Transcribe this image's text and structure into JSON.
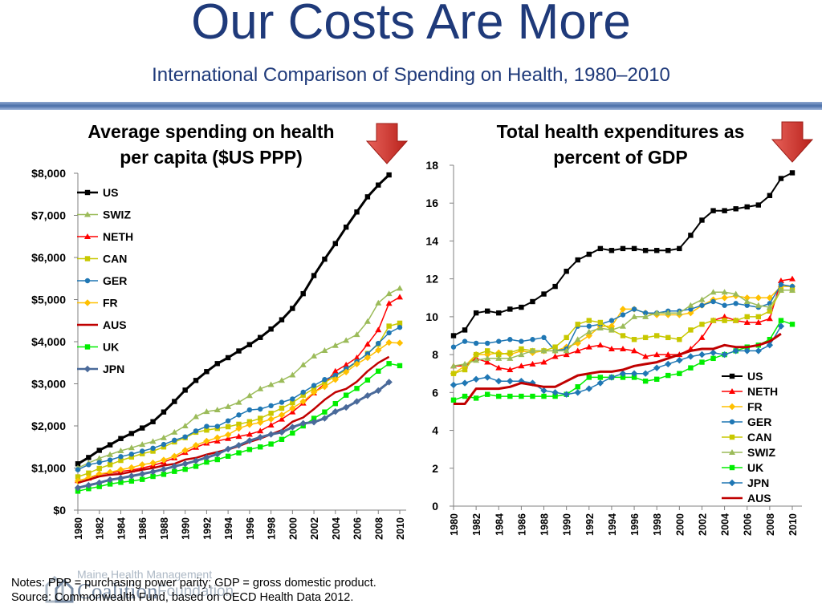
{
  "slide": {
    "title": "Our Costs Are More",
    "subtitle": "International Comparison of Spending on Health, 1980–2010",
    "notes_line1": "Notes: PPP = purchasing power parity; GDP = gross domestic product.",
    "notes_line2": "Source: Commonwealth Fund, based on OECD Health Data 2012.",
    "logo_line1": "Maine Health Management",
    "logo_line2": "Coalition",
    "logo_line3": "Foundation"
  },
  "chart_data": [
    {
      "type": "line",
      "title": "Average spending on health per capita ($US PPP)",
      "title_lines": [
        "Average spending on health",
        "per capita ($US PPP)"
      ],
      "xlabel": "",
      "ylabel": "",
      "x": [
        1980,
        1981,
        1982,
        1983,
        1984,
        1985,
        1986,
        1987,
        1988,
        1989,
        1990,
        1991,
        1992,
        1993,
        1994,
        1995,
        1996,
        1997,
        1998,
        1999,
        2000,
        2001,
        2002,
        2003,
        2004,
        2005,
        2006,
        2007,
        2008,
        2009,
        2010
      ],
      "xticks": [
        "1980",
        "1982",
        "1984",
        "1986",
        "1988",
        "1990",
        "1992",
        "1994",
        "1996",
        "1998",
        "2000",
        "2002",
        "2004",
        "2006",
        "2008",
        "2010"
      ],
      "ylim": [
        0,
        8000
      ],
      "yticks": [
        0,
        1000,
        2000,
        3000,
        4000,
        5000,
        6000,
        7000,
        8000
      ],
      "ytick_labels": [
        "$0",
        "$1,000",
        "$2,000",
        "$3,000",
        "$4,000",
        "$5,000",
        "$6,000",
        "$7,000",
        "$8,000"
      ],
      "legend_position": "upper-left",
      "series": [
        {
          "name": "US",
          "color": "#000000",
          "marker": "square",
          "width": 3,
          "values": [
            1100,
            1250,
            1420,
            1550,
            1700,
            1820,
            1950,
            2100,
            2330,
            2580,
            2850,
            3080,
            3290,
            3480,
            3620,
            3780,
            3930,
            4100,
            4300,
            4520,
            4790,
            5140,
            5570,
            5960,
            6330,
            6720,
            7080,
            7440,
            7720,
            7960,
            null
          ]
        },
        {
          "name": "SWIZ",
          "color": "#9bbb59",
          "marker": "triangle",
          "width": 1.5,
          "values": [
            1000,
            1120,
            1230,
            1320,
            1410,
            1480,
            1560,
            1630,
            1720,
            1850,
            2000,
            2220,
            2340,
            2380,
            2460,
            2560,
            2720,
            2880,
            2980,
            3080,
            3210,
            3450,
            3660,
            3790,
            3910,
            4030,
            4170,
            4480,
            4920,
            5140,
            5270
          ]
        },
        {
          "name": "NETH",
          "color": "#ff0000",
          "marker": "triangle",
          "width": 1.5,
          "values": [
            700,
            760,
            850,
            880,
            920,
            950,
            1000,
            1060,
            1140,
            1240,
            1370,
            1490,
            1590,
            1640,
            1700,
            1750,
            1800,
            1880,
            2020,
            2160,
            2330,
            2540,
            2780,
            3000,
            3300,
            3450,
            3620,
            3940,
            4280,
            4910,
            5060
          ]
        },
        {
          "name": "CAN",
          "color": "#c8c800",
          "marker": "square",
          "width": 1.5,
          "values": [
            790,
            880,
            990,
            1080,
            1180,
            1260,
            1340,
            1400,
            1500,
            1620,
            1720,
            1850,
            1900,
            1940,
            1980,
            2040,
            2100,
            2180,
            2300,
            2420,
            2550,
            2730,
            2890,
            3030,
            3180,
            3330,
            3520,
            3720,
            3940,
            4370,
            4440
          ]
        },
        {
          "name": "GER",
          "color": "#1f77b4",
          "marker": "circle",
          "width": 1.5,
          "values": [
            960,
            1080,
            1130,
            1190,
            1270,
            1330,
            1400,
            1470,
            1560,
            1660,
            1740,
            1880,
            1990,
            1990,
            2120,
            2260,
            2380,
            2400,
            2480,
            2560,
            2640,
            2800,
            2960,
            3100,
            3200,
            3360,
            3530,
            3710,
            3960,
            4210,
            4340
          ]
        },
        {
          "name": "FR",
          "color": "#ffc000",
          "marker": "diamond",
          "width": 1.5,
          "values": [
            690,
            770,
            860,
            900,
            960,
            1010,
            1080,
            1120,
            1190,
            1280,
            1420,
            1540,
            1640,
            1720,
            1790,
            1940,
            2030,
            2080,
            2160,
            2260,
            2420,
            2580,
            2800,
            2930,
            3100,
            3280,
            3470,
            3620,
            3800,
            3980,
            3970
          ]
        },
        {
          "name": "AUS",
          "color": "#c00000",
          "marker": "none",
          "width": 2.5,
          "values": [
            650,
            720,
            800,
            840,
            860,
            910,
            960,
            1000,
            1060,
            1100,
            1200,
            1240,
            1320,
            1380,
            1440,
            1520,
            1620,
            1700,
            1800,
            1900,
            2100,
            2200,
            2400,
            2620,
            2800,
            2880,
            3050,
            3300,
            3500,
            3640,
            null
          ]
        },
        {
          "name": "UK",
          "color": "#00ee00",
          "marker": "square",
          "width": 1.5,
          "values": [
            450,
            510,
            560,
            620,
            660,
            690,
            730,
            800,
            850,
            920,
            970,
            1040,
            1140,
            1200,
            1280,
            1360,
            1440,
            1500,
            1570,
            1680,
            1830,
            2000,
            2180,
            2330,
            2530,
            2730,
            2890,
            3090,
            3300,
            3480,
            3430
          ]
        },
        {
          "name": "JPN",
          "color": "#4a6a9a",
          "marker": "diamond",
          "width": 3,
          "values": [
            530,
            590,
            650,
            720,
            760,
            810,
            860,
            910,
            970,
            1040,
            1100,
            1170,
            1250,
            1330,
            1450,
            1540,
            1650,
            1730,
            1800,
            1850,
            1970,
            2060,
            2090,
            2180,
            2340,
            2440,
            2580,
            2720,
            2840,
            3040,
            null
          ]
        }
      ]
    },
    {
      "type": "line",
      "title": "Total health expenditures as percent of GDP",
      "title_lines": [
        "Total health expenditures as",
        "percent of GDP"
      ],
      "xlabel": "",
      "ylabel": "",
      "x": [
        1980,
        1981,
        1982,
        1983,
        1984,
        1985,
        1986,
        1987,
        1988,
        1989,
        1990,
        1991,
        1992,
        1993,
        1994,
        1995,
        1996,
        1997,
        1998,
        1999,
        2000,
        2001,
        2002,
        2003,
        2004,
        2005,
        2006,
        2007,
        2008,
        2009,
        2010
      ],
      "xticks": [
        "1980",
        "1982",
        "1984",
        "1986",
        "1988",
        "1990",
        "1992",
        "1994",
        "1996",
        "1998",
        "2000",
        "2002",
        "2004",
        "2006",
        "2008",
        "2010"
      ],
      "ylim": [
        0,
        18
      ],
      "yticks": [
        0,
        2,
        4,
        6,
        8,
        10,
        12,
        14,
        16,
        18
      ],
      "ytick_labels": [
        "0",
        "2",
        "4",
        "6",
        "8",
        "10",
        "12",
        "14",
        "16",
        "18"
      ],
      "legend_position": "lower-right",
      "series": [
        {
          "name": "US",
          "color": "#000000",
          "marker": "square",
          "width": 2,
          "values": [
            9.0,
            9.3,
            10.2,
            10.3,
            10.2,
            10.4,
            10.5,
            10.8,
            11.2,
            11.6,
            12.4,
            13.0,
            13.3,
            13.6,
            13.5,
            13.6,
            13.6,
            13.5,
            13.5,
            13.5,
            13.6,
            14.3,
            15.1,
            15.6,
            15.6,
            15.7,
            15.8,
            15.9,
            16.4,
            17.3,
            17.6
          ]
        },
        {
          "name": "NETH",
          "color": "#ff0000",
          "marker": "triangle",
          "width": 1.5,
          "values": [
            7.4,
            7.4,
            7.8,
            7.6,
            7.3,
            7.2,
            7.4,
            7.5,
            7.6,
            7.9,
            8.0,
            8.2,
            8.4,
            8.5,
            8.3,
            8.3,
            8.2,
            7.9,
            8.0,
            8.0,
            8.0,
            8.3,
            8.9,
            9.8,
            10.0,
            9.8,
            9.7,
            9.7,
            9.9,
            11.9,
            12.0
          ]
        },
        {
          "name": "FR",
          "color": "#ffc000",
          "marker": "diamond",
          "width": 1.5,
          "values": [
            7.0,
            7.4,
            8.0,
            8.0,
            8.1,
            8.0,
            8.2,
            8.1,
            8.2,
            8.2,
            8.4,
            8.6,
            9.0,
            9.5,
            9.5,
            10.4,
            10.4,
            10.2,
            10.1,
            10.1,
            10.1,
            10.2,
            10.6,
            10.9,
            11.0,
            11.1,
            11.0,
            11.0,
            11.0,
            11.6,
            11.6
          ]
        },
        {
          "name": "GER",
          "color": "#1f77b4",
          "marker": "circle",
          "width": 1.5,
          "values": [
            8.4,
            8.7,
            8.6,
            8.6,
            8.7,
            8.8,
            8.7,
            8.8,
            8.9,
            8.2,
            8.3,
            9.5,
            9.5,
            9.6,
            9.8,
            10.1,
            10.4,
            10.2,
            10.2,
            10.3,
            10.3,
            10.4,
            10.6,
            10.8,
            10.6,
            10.7,
            10.6,
            10.5,
            10.7,
            11.7,
            11.6
          ]
        },
        {
          "name": "CAN",
          "color": "#c8c800",
          "marker": "square",
          "width": 1.5,
          "values": [
            7.0,
            7.2,
            8.0,
            8.2,
            8.0,
            8.1,
            8.3,
            8.2,
            8.2,
            8.4,
            8.9,
            9.6,
            9.8,
            9.7,
            9.3,
            9.0,
            8.8,
            8.9,
            9.0,
            8.9,
            8.8,
            9.3,
            9.6,
            9.8,
            9.8,
            9.8,
            10.0,
            10.0,
            10.3,
            11.4,
            11.4
          ]
        },
        {
          "name": "SWIZ",
          "color": "#9bbb59",
          "marker": "triangle",
          "width": 1.5,
          "values": [
            7.4,
            7.5,
            7.7,
            7.8,
            7.8,
            7.8,
            8.0,
            8.2,
            8.2,
            8.2,
            8.2,
            8.8,
            9.2,
            9.4,
            9.3,
            9.5,
            10.0,
            10.0,
            10.2,
            10.2,
            10.2,
            10.6,
            10.9,
            11.3,
            11.3,
            11.2,
            10.8,
            10.6,
            10.5,
            11.4,
            11.4
          ]
        },
        {
          "name": "UK",
          "color": "#00ee00",
          "marker": "square",
          "width": 1.5,
          "values": [
            5.6,
            5.8,
            5.7,
            5.9,
            5.8,
            5.8,
            5.8,
            5.8,
            5.8,
            5.8,
            5.9,
            6.3,
            6.8,
            6.8,
            6.8,
            6.8,
            6.8,
            6.6,
            6.7,
            6.9,
            7.0,
            7.3,
            7.6,
            7.8,
            8.0,
            8.2,
            8.4,
            8.5,
            8.8,
            9.8,
            9.6
          ]
        },
        {
          "name": "JPN",
          "color": "#1f77b4",
          "marker": "diamond",
          "width": 1.5,
          "values": [
            6.4,
            6.5,
            6.7,
            6.8,
            6.6,
            6.6,
            6.6,
            6.5,
            6.1,
            6.0,
            5.9,
            6.0,
            6.2,
            6.5,
            6.8,
            7.0,
            7.0,
            7.0,
            7.3,
            7.5,
            7.7,
            7.9,
            8.0,
            8.1,
            8.0,
            8.2,
            8.2,
            8.2,
            8.5,
            9.5,
            null
          ]
        },
        {
          "name": "AUS",
          "color": "#c00000",
          "marker": "none",
          "width": 3,
          "values": [
            5.4,
            5.4,
            6.2,
            6.2,
            6.2,
            6.3,
            6.5,
            6.4,
            6.3,
            6.3,
            6.6,
            6.9,
            7.0,
            7.1,
            7.1,
            7.2,
            7.4,
            7.5,
            7.6,
            7.8,
            8.0,
            8.2,
            8.3,
            8.3,
            8.5,
            8.4,
            8.4,
            8.5,
            8.7,
            9.1,
            null
          ]
        }
      ]
    }
  ]
}
